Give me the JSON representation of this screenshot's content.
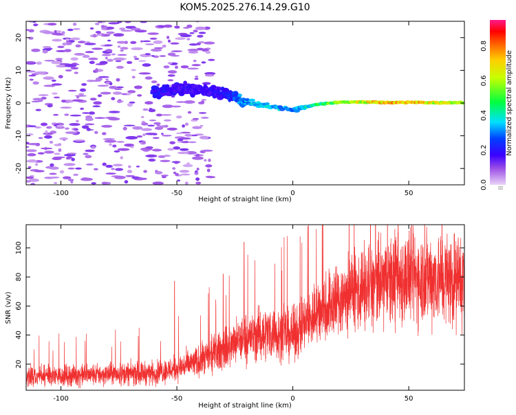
{
  "title": "KOM5.2025.276.14.29.G10",
  "chart_data": [
    {
      "type": "heatmap",
      "name": "spectrogram",
      "xlabel": "Height of straight line (km)",
      "ylabel": "Frequency (Hz)",
      "xlim": [
        -115,
        74
      ],
      "ylim": [
        -25,
        25
      ],
      "xticks": [
        -100,
        -50,
        0,
        50
      ],
      "yticks": [
        -20,
        -10,
        0,
        10,
        20
      ],
      "colorbar": {
        "label": "Normalized spectral amplitude",
        "range": [
          0,
          0.95
        ],
        "ticks": [
          0.0,
          0.2,
          0.4,
          0.6,
          0.8
        ],
        "colors": [
          "#e6c8f5",
          "#8a2be2",
          "#0000ff",
          "#00ffff",
          "#00ff00",
          "#ffff00",
          "#ff8000",
          "#ff0000",
          "#ff1493"
        ]
      },
      "features": [
        {
          "description": "main signal trace",
          "x": [
            -60,
            -50,
            -40,
            -30,
            -20,
            -10,
            0,
            10,
            20,
            30,
            40,
            50,
            60,
            74
          ],
          "freq_hz": [
            3,
            4.5,
            4,
            2.5,
            0.5,
            -1,
            -2,
            -0.5,
            0.3,
            0.3,
            0.2,
            0.2,
            0.1,
            0.1
          ],
          "amplitude": [
            0.2,
            0.2,
            0.18,
            0.2,
            0.35,
            0.4,
            0.3,
            0.45,
            0.6,
            0.7,
            0.75,
            0.8,
            0.7,
            0.65
          ]
        },
        {
          "description": "background noise",
          "x_range": [
            -115,
            -35
          ],
          "freq_range": [
            -25,
            25
          ],
          "amplitude": [
            0.03,
            0.12
          ]
        }
      ]
    },
    {
      "type": "line",
      "name": "snr",
      "xlabel": "Height of straight line (km)",
      "ylabel": "SNR (v/v)",
      "xlim": [
        -115,
        74
      ],
      "ylim": [
        2,
        116
      ],
      "xticks": [
        -100,
        -50,
        0,
        50
      ],
      "yticks": [
        20,
        40,
        60,
        80,
        100
      ],
      "color": "#f03030",
      "trend": {
        "x": [
          -115,
          -100,
          -80,
          -60,
          -50,
          -40,
          -30,
          -20,
          -10,
          0,
          10,
          20,
          30,
          40,
          50,
          60,
          74
        ],
        "y": [
          12,
          12,
          13,
          14,
          17,
          22,
          30,
          38,
          42,
          40,
          55,
          65,
          72,
          77,
          80,
          80,
          78
        ]
      },
      "peaks": [
        {
          "x": -51,
          "y": 77
        },
        {
          "x": -30,
          "y": 82
        },
        {
          "x": -21,
          "y": 104
        },
        {
          "x": 44,
          "y": 113
        },
        {
          "x": 52,
          "y": 110
        }
      ]
    }
  ]
}
